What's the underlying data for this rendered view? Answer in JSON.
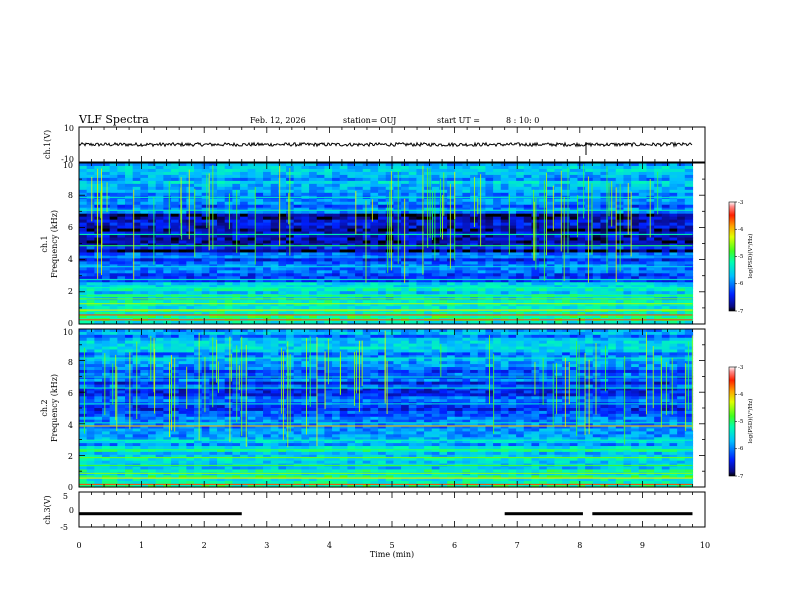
{
  "header": {
    "title": "VLF Spectra",
    "date": "Feb. 12, 2026",
    "station": "station= OUJ",
    "start_prefix": "start  UT =",
    "start_time": "8 : 10: 0"
  },
  "chart_data": [
    {
      "type": "line",
      "name": "ch1-waveform",
      "ylabel": "ch.1(V)",
      "ylim": [
        -10,
        10
      ],
      "yticks": [
        "10",
        "-10"
      ],
      "xlim": [
        0,
        10
      ],
      "level": 0,
      "noise": 2,
      "data_extent": [
        0,
        9.8
      ]
    },
    {
      "type": "heatmap",
      "name": "ch1-spectrogram",
      "ylabel": "ch.1",
      "ylabel2": "Frequency (kHz)",
      "ylim": [
        0,
        10
      ],
      "yticks": [
        "0",
        "2",
        "4",
        "6",
        "8",
        "10"
      ],
      "xlim": [
        0,
        10
      ],
      "data_extent": [
        0,
        9.8
      ],
      "colorbar": {
        "label": "log(PSD)(V²/Hz)",
        "range": [
          -7,
          -3
        ],
        "ticks": [
          "-3",
          "-4",
          "-5",
          "-6",
          "-7"
        ]
      }
    },
    {
      "type": "heatmap",
      "name": "ch2-spectrogram",
      "ylabel": "ch.2",
      "ylabel2": "Frequency (kHz)",
      "ylim": [
        0,
        10
      ],
      "yticks": [
        "0",
        "2",
        "4",
        "6",
        "8",
        "10"
      ],
      "xlim": [
        0,
        10
      ],
      "data_extent": [
        0,
        9.8
      ],
      "colorbar": {
        "label": "log(PSD)(V²/Hz)",
        "range": [
          -7,
          -3
        ],
        "ticks": [
          "-3",
          "-4",
          "-5",
          "-6",
          "-7"
        ]
      }
    },
    {
      "type": "line",
      "name": "ch3-signal",
      "ylabel": "ch.3(V)",
      "ylim": [
        -5,
        5
      ],
      "yticks": [
        "5",
        "0",
        "-5"
      ],
      "xlim": [
        0,
        10
      ],
      "xlabel": "Time (min)",
      "xticks": [
        "0",
        "1",
        "2",
        "3",
        "4",
        "5",
        "6",
        "7",
        "8",
        "9",
        "10"
      ],
      "segments": [
        [
          0,
          2.6
        ],
        [
          6.8,
          8.05
        ],
        [
          8.2,
          9.8
        ]
      ],
      "level": -1.2
    }
  ]
}
